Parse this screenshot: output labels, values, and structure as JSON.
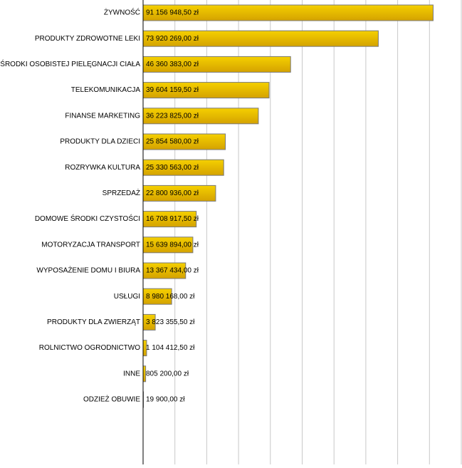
{
  "chart_data": {
    "type": "barh",
    "categories": [
      "ŻYWNOŚĆ",
      "PRODUKTY ZDROWOTNE LEKI",
      "ŚRODKI OSOBISTEJ PIELĘGNACJI CIAŁA",
      "TELEKOMUNIKACJA",
      "FINANSE MARKETING",
      "PRODUKTY DLA DZIECI",
      "ROZRYWKA KULTURA",
      "SPRZEDAŻ",
      "DOMOWE ŚRODKI CZYSTOŚCI",
      "MOTORYZACJA TRANSPORT",
      "WYPOSAŻENIE DOMU I BIURA",
      "USŁUGI",
      "PRODUKTY DLA ZWIERZĄT",
      "ROLNICTWO OGRODNICTWO",
      "INNE",
      "ODZIEŻ OBUWIE"
    ],
    "values": [
      91156948.5,
      73920269,
      46360383,
      39604159.5,
      36223825,
      25854580,
      25330563,
      22800936,
      16708917.5,
      15639894,
      13367434,
      8980168,
      3823355.5,
      1104412.5,
      805200,
      19900
    ],
    "value_labels": [
      "91 156 948,50 zł",
      "73 920 269,00 zł",
      "46 360 383,00 zł",
      "39 604 159,50 zł",
      "36 223 825,00 zł",
      "25 854 580,00 zł",
      "25 330 563,00 zł",
      "22 800 936,00 zł",
      "16 708 917,50 zł",
      "15 639 894,00 zł",
      "13 367 434,00 zł",
      "8 980 168,00 zł",
      "3 823 355,50 zł",
      "1 104 412,50 zł",
      "805 200,00 zł",
      "19 900,00 zł"
    ],
    "color": "#e6b800",
    "xlim": [
      0,
      100000000
    ],
    "xticks": [
      0,
      10000000,
      20000000,
      30000000,
      40000000,
      50000000,
      60000000,
      70000000,
      80000000,
      90000000,
      100000000
    ],
    "grid": true
  }
}
